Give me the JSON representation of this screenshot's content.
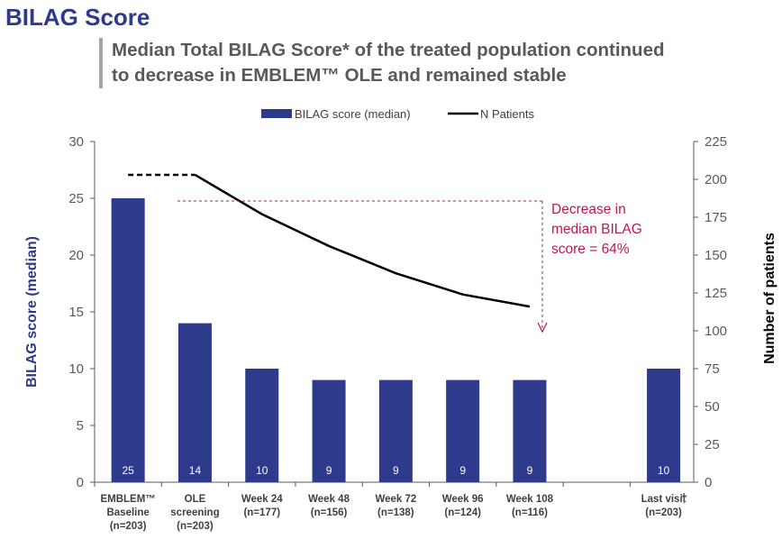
{
  "header": {
    "title": "BILAG Score",
    "subtitle_line1": "Median Total BILAG Score* of the treated population continued",
    "subtitle_line2": "to decrease in EMBLEM™ OLE and remained stable"
  },
  "chart_data": {
    "type": "bar",
    "categories": [
      {
        "line1": "EMBLEM™",
        "line2": "Baseline",
        "line3": "(n=203)"
      },
      {
        "line1": "OLE",
        "line2": "screening",
        "line3": "(n=203)"
      },
      {
        "line1": "Week 24",
        "line2": "(n=177)",
        "line3": ""
      },
      {
        "line1": "Week 48",
        "line2": "(n=156)",
        "line3": ""
      },
      {
        "line1": "Week 72",
        "line2": "(n=138)",
        "line3": ""
      },
      {
        "line1": "Week 96",
        "line2": "(n=124)",
        "line3": ""
      },
      {
        "line1": "Week 108",
        "line2": "(n=116)",
        "line3": ""
      },
      {
        "line1": "",
        "line2": "",
        "line3": ""
      },
      {
        "line1": "Last visit",
        "line2": "(n=203)",
        "line3": ""
      }
    ],
    "last_visit_marker": "†",
    "series": [
      {
        "name": "BILAG score (median)",
        "axis": "left",
        "kind": "bar",
        "color": "#2e3a8c",
        "values": [
          25,
          14,
          10,
          9,
          9,
          9,
          9,
          null,
          10
        ],
        "labels": [
          "25",
          "14",
          "10",
          "9",
          "9",
          "9",
          "9",
          "",
          "10"
        ]
      },
      {
        "name": "N Patients",
        "axis": "right",
        "kind": "line",
        "color": "#000000",
        "values": [
          203,
          203,
          177,
          156,
          138,
          124,
          116,
          null,
          null
        ],
        "dashed_segment_until_index": 1
      }
    ],
    "y_left": {
      "label": "BILAG score (median)",
      "min": 0,
      "max": 30,
      "ticks": [
        "0",
        "5",
        "10",
        "15",
        "20",
        "25",
        "30"
      ]
    },
    "y_right": {
      "label": "Number of patients",
      "min": 0,
      "max": 225,
      "ticks": [
        "0",
        "25",
        "50",
        "75",
        "100",
        "125",
        "150",
        "175",
        "200",
        "225"
      ]
    },
    "legend_position": "top",
    "annotation": {
      "lines": [
        "Decrease in",
        "median BILAG",
        "score = 64%"
      ],
      "color": "#c0174f"
    }
  }
}
